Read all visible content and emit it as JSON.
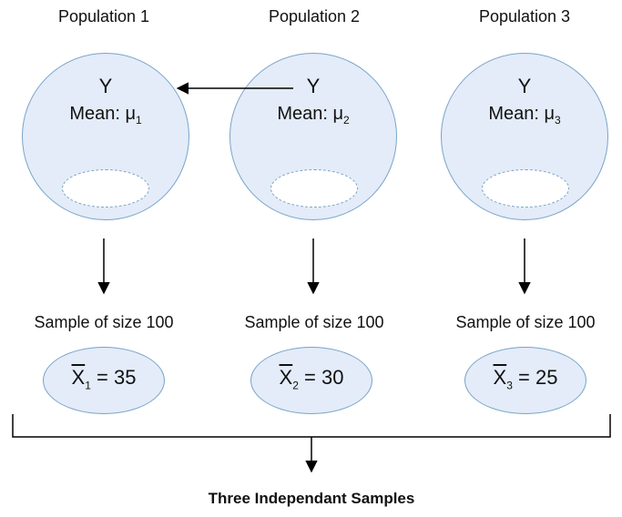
{
  "populations": [
    {
      "title": "Population 1",
      "variable": "Y",
      "mean_label": "Mean: μ",
      "mean_sub": "1"
    },
    {
      "title": "Population 2",
      "variable": "Y",
      "mean_label": "Mean: μ",
      "mean_sub": "2"
    },
    {
      "title": "Population 3",
      "variable": "Y",
      "mean_label": "Mean: μ",
      "mean_sub": "3"
    }
  ],
  "samples": [
    {
      "title": "Sample of size 100",
      "symbol": "X",
      "sub": "1",
      "equals": " = 35"
    },
    {
      "title": "Sample of size 100",
      "symbol": "X",
      "sub": "2",
      "equals": " = 30"
    },
    {
      "title": "Sample of size 100",
      "symbol": "X",
      "sub": "3",
      "equals": " = 25"
    }
  ],
  "footer": "Three Independant Samples",
  "colors": {
    "fill": "#e3ecf8",
    "stroke": "#7aa3c8"
  }
}
